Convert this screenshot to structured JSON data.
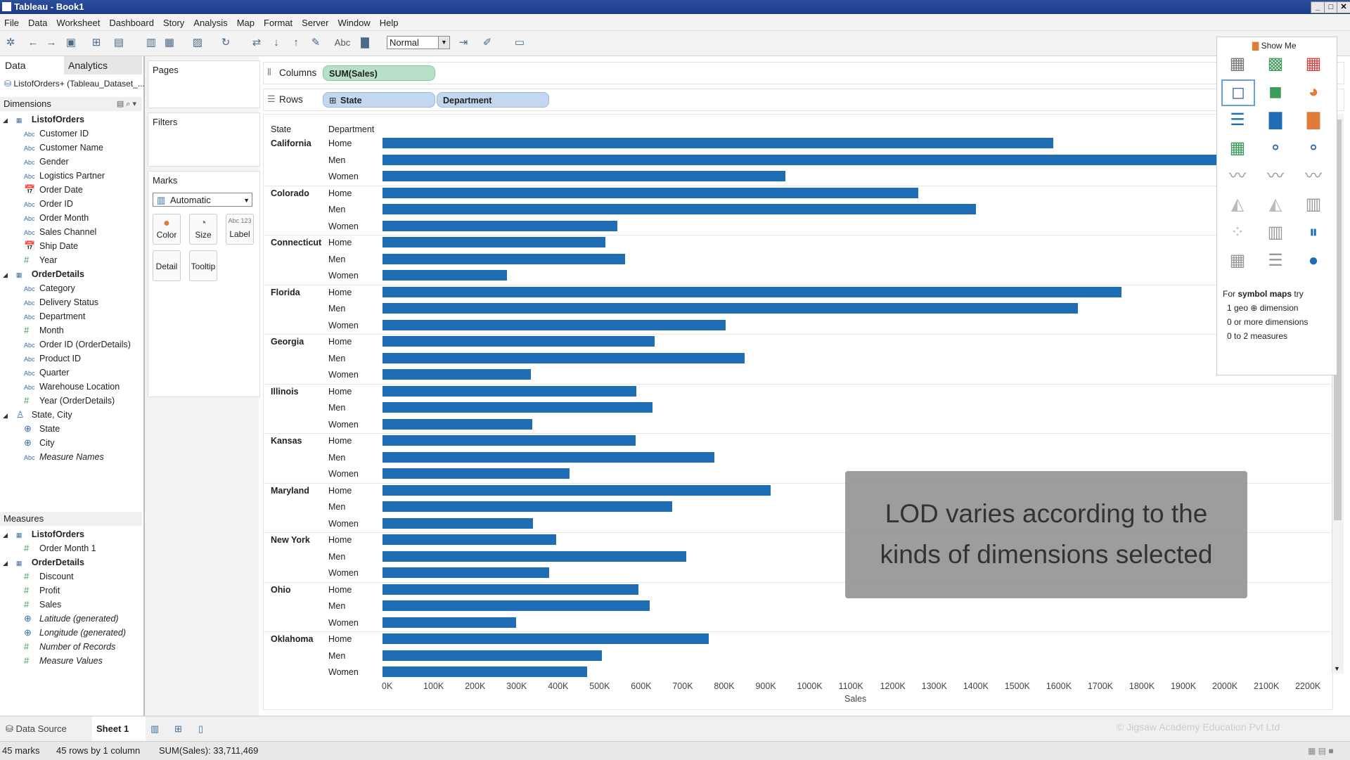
{
  "window": {
    "title": "Tableau - Book1"
  },
  "menu": [
    "File",
    "Data",
    "Worksheet",
    "Dashboard",
    "Story",
    "Analysis",
    "Map",
    "Format",
    "Server",
    "Window",
    "Help"
  ],
  "toolbar": {
    "fit": "Normal",
    "abc": "Abc"
  },
  "datapane": {
    "tab_data": "Data",
    "tab_analytics": "Analytics",
    "datasource": "ListofOrders+ (Tableau_Dataset_...",
    "dimensions_label": "Dimensions",
    "measures_label": "Measures",
    "dimensions": [
      {
        "name": "ListofOrders",
        "type": "table",
        "group": true
      },
      {
        "name": "Customer ID",
        "type": "abc"
      },
      {
        "name": "Customer Name",
        "type": "abc"
      },
      {
        "name": "Gender",
        "type": "abc"
      },
      {
        "name": "Logistics Partner",
        "type": "abc"
      },
      {
        "name": "Order Date",
        "type": "date"
      },
      {
        "name": "Order ID",
        "type": "abc"
      },
      {
        "name": "Order Month",
        "type": "abc"
      },
      {
        "name": "Sales Channel",
        "type": "abc"
      },
      {
        "name": "Ship Date",
        "type": "date"
      },
      {
        "name": "Year",
        "type": "num"
      },
      {
        "name": "OrderDetails",
        "type": "table",
        "group": true
      },
      {
        "name": "Category",
        "type": "abc"
      },
      {
        "name": "Delivery Status",
        "type": "abc"
      },
      {
        "name": "Department",
        "type": "abc"
      },
      {
        "name": "Month",
        "type": "num"
      },
      {
        "name": "Order ID (OrderDetails)",
        "type": "abc"
      },
      {
        "name": "Product ID",
        "type": "abc"
      },
      {
        "name": "Quarter",
        "type": "abc"
      },
      {
        "name": "Warehouse Location",
        "type": "abc"
      },
      {
        "name": "Year (OrderDetails)",
        "type": "num"
      },
      {
        "name": "State, City",
        "type": "hier"
      },
      {
        "name": "State",
        "type": "geo"
      },
      {
        "name": "City",
        "type": "geo"
      },
      {
        "name": "Measure Names",
        "type": "abc",
        "italic": true
      }
    ],
    "measures": [
      {
        "name": "ListofOrders",
        "type": "table",
        "group": true
      },
      {
        "name": "Order Month 1",
        "type": "num"
      },
      {
        "name": "OrderDetails",
        "type": "table",
        "group": true
      },
      {
        "name": "Discount",
        "type": "num"
      },
      {
        "name": "Profit",
        "type": "num"
      },
      {
        "name": "Sales",
        "type": "num"
      },
      {
        "name": "Latitude (generated)",
        "type": "geo",
        "italic": true
      },
      {
        "name": "Longitude (generated)",
        "type": "geo",
        "italic": true
      },
      {
        "name": "Number of Records",
        "type": "num",
        "italic": true
      },
      {
        "name": "Measure Values",
        "type": "num",
        "italic": true
      }
    ]
  },
  "cards": {
    "pages": "Pages",
    "filters": "Filters",
    "marks": "Marks",
    "mark_type": "Automatic",
    "color": "Color",
    "size": "Size",
    "label": "Label",
    "label_icon": "Abc 123",
    "detail": "Detail",
    "tooltip": "Tooltip"
  },
  "shelves": {
    "columns_label": "Columns",
    "rows_label": "Rows",
    "columns_pill": "SUM(Sales)",
    "rows_pill1": "State",
    "rows_pill2": "Department"
  },
  "view": {
    "state_header": "State",
    "dept_header": "Department",
    "x_axis_title": "Sales"
  },
  "chart_data": {
    "type": "bar",
    "orientation": "horizontal",
    "x_label": "Sales",
    "xlim": [
      0,
      2300000
    ],
    "x_ticks": [
      "0K",
      "100K",
      "200K",
      "300K",
      "400K",
      "500K",
      "600K",
      "700K",
      "800K",
      "900K",
      "1000K",
      "1100K",
      "1200K",
      "1300K",
      "1400K",
      "1500K",
      "1600K",
      "1700K",
      "1800K",
      "1900K",
      "2000K",
      "2100K",
      "2200K"
    ],
    "groups": [
      {
        "state": "California",
        "values": [
          {
            "dept": "Home",
            "value": 1615000
          },
          {
            "dept": "Men",
            "value": 2300000
          },
          {
            "dept": "Women",
            "value": 970000
          }
        ]
      },
      {
        "state": "Colorado",
        "values": [
          {
            "dept": "Home",
            "value": 1290000
          },
          {
            "dept": "Men",
            "value": 1430000
          },
          {
            "dept": "Women",
            "value": 565000
          }
        ]
      },
      {
        "state": "Connecticut",
        "values": [
          {
            "dept": "Home",
            "value": 537000
          },
          {
            "dept": "Men",
            "value": 585000
          },
          {
            "dept": "Women",
            "value": 300000
          }
        ]
      },
      {
        "state": "Florida",
        "values": [
          {
            "dept": "Home",
            "value": 1780000
          },
          {
            "dept": "Men",
            "value": 1675000
          },
          {
            "dept": "Women",
            "value": 827000
          }
        ]
      },
      {
        "state": "Georgia",
        "values": [
          {
            "dept": "Home",
            "value": 655000
          },
          {
            "dept": "Men",
            "value": 872000
          },
          {
            "dept": "Women",
            "value": 357000
          }
        ]
      },
      {
        "state": "Illinois",
        "values": [
          {
            "dept": "Home",
            "value": 611000
          },
          {
            "dept": "Men",
            "value": 650000
          },
          {
            "dept": "Women",
            "value": 361000
          }
        ]
      },
      {
        "state": "Kansas",
        "values": [
          {
            "dept": "Home",
            "value": 610000
          },
          {
            "dept": "Men",
            "value": 800000
          },
          {
            "dept": "Women",
            "value": 451000
          }
        ]
      },
      {
        "state": "Maryland",
        "values": [
          {
            "dept": "Home",
            "value": 935000
          },
          {
            "dept": "Men",
            "value": 698000
          },
          {
            "dept": "Women",
            "value": 363000
          }
        ]
      },
      {
        "state": "New York",
        "values": [
          {
            "dept": "Home",
            "value": 418000
          },
          {
            "dept": "Men",
            "value": 732000
          },
          {
            "dept": "Women",
            "value": 402000
          }
        ]
      },
      {
        "state": "Ohio",
        "values": [
          {
            "dept": "Home",
            "value": 617000
          },
          {
            "dept": "Men",
            "value": 643000
          },
          {
            "dept": "Women",
            "value": 322000
          }
        ]
      },
      {
        "state": "Oklahoma",
        "values": [
          {
            "dept": "Home",
            "value": 785000
          },
          {
            "dept": "Men",
            "value": 528000
          },
          {
            "dept": "Women",
            "value": 493000
          }
        ]
      }
    ],
    "bar_color": "#1f6db5"
  },
  "showme": {
    "title": "Show Me",
    "hint_title_pre": "For ",
    "hint_title_bold": "symbol maps",
    "hint_title_post": " try",
    "hint1_pre": "1 geo ",
    "hint1_post": " dimension",
    "hint2": "0 or more dimensions",
    "hint3": "0 to 2 measures"
  },
  "overlay": {
    "line1": "LOD varies according to the",
    "line2": "kinds of dimensions selected"
  },
  "sheets": {
    "datasource": "Data Source",
    "sheet1": "Sheet 1"
  },
  "status": {
    "marks": "45 marks",
    "rows": "45 rows by 1 column",
    "sum": "SUM(Sales): 33,711,469"
  },
  "watermark": "© Jigsaw Academy Education Pvt Ltd"
}
